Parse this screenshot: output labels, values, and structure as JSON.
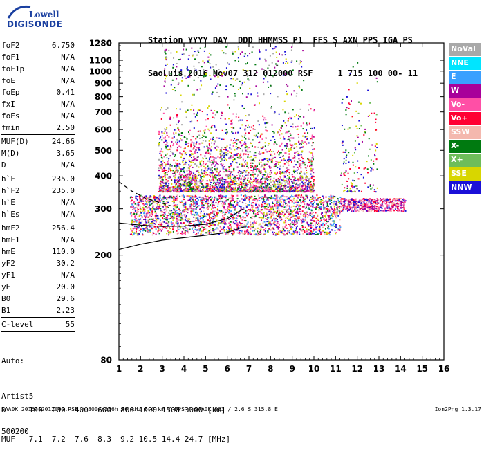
{
  "logo": {
    "line1": "Lowell",
    "line2": "DIGISONDE"
  },
  "header": {
    "line1": "Station YYYY DAY  DDD HHMMSS P1  FFS S AXN PPS IGA PS",
    "line2": "SaoLuis 2016 Nov07 312 012000 RSF     1 715 100 00- 11"
  },
  "params_groups": [
    [
      {
        "label": "foF2",
        "value": "6.750"
      },
      {
        "label": "foF1",
        "value": "N/A"
      },
      {
        "label": "foF1p",
        "value": "N/A"
      },
      {
        "label": "foE",
        "value": "N/A"
      },
      {
        "label": "foEp",
        "value": "0.41"
      },
      {
        "label": "fxI",
        "value": "N/A"
      },
      {
        "label": "foEs",
        "value": "N/A"
      },
      {
        "label": "fmin",
        "value": "2.50"
      }
    ],
    [
      {
        "label": "MUF(D)",
        "value": "24.66"
      },
      {
        "label": "M(D)",
        "value": "3.65"
      },
      {
        "label": "D",
        "value": "N/A"
      }
    ],
    [
      {
        "label": "h`F",
        "value": "235.0"
      },
      {
        "label": "h`F2",
        "value": "235.0"
      },
      {
        "label": "h`E",
        "value": "N/A"
      },
      {
        "label": "h`Es",
        "value": "N/A"
      }
    ],
    [
      {
        "label": "hmF2",
        "value": "256.4"
      },
      {
        "label": "hmF1",
        "value": "N/A"
      },
      {
        "label": "hmE",
        "value": "110.0"
      },
      {
        "label": "yF2",
        "value": "30.2"
      },
      {
        "label": "yF1",
        "value": "N/A"
      },
      {
        "label": "yE",
        "value": "20.0"
      },
      {
        "label": "B0",
        "value": "29.6"
      },
      {
        "label": "B1",
        "value": "2.23"
      }
    ],
    [
      {
        "label": "C-level",
        "value": "55"
      }
    ]
  ],
  "auto": {
    "line1": "Auto:",
    "line2": "Artist5",
    "line3": "500200"
  },
  "legend": [
    {
      "label": "NoVal",
      "color": "#a9a9a9"
    },
    {
      "label": "NNE",
      "color": "#00e5ff"
    },
    {
      "label": "E",
      "color": "#3aa0ff"
    },
    {
      "label": "W",
      "color": "#a8009a"
    },
    {
      "label": "Vo-",
      "color": "#ff4fa6"
    },
    {
      "label": "Vo+",
      "color": "#ff0033"
    },
    {
      "label": "SSW",
      "color": "#f4b8ae"
    },
    {
      "label": "X-",
      "color": "#007a10"
    },
    {
      "label": "X+",
      "color": "#6ebd5a"
    },
    {
      "label": "SSE",
      "color": "#d8d600"
    },
    {
      "label": "NNW",
      "color": "#1a10d8"
    }
  ],
  "muf_table": {
    "row1": "D     100  200  400  600  800 1000 1500 3000 [km]",
    "row2": "MUF   7.1  7.2  7.6  8.3  9.2 10.5 14.4 24.7 [MHz]"
  },
  "footer": "SAA0K_2016312012000.RSF / 300fx256h 50 kHz 5.0 km / DPS-4 SAA0K 903 / 2.6 S 315.8 E",
  "version": "Ion2Png 1.3.17",
  "chart_data": {
    "type": "scatter",
    "title": "",
    "xlabel": "",
    "ylabel": "",
    "xlim": [
      1,
      16
    ],
    "ylim": [
      80,
      1280
    ],
    "y_scale": "log",
    "x_ticks": [
      1,
      2,
      3,
      4,
      5,
      6,
      7,
      8,
      9,
      10,
      11,
      12,
      13,
      14,
      15,
      16
    ],
    "y_ticks": [
      80,
      200,
      300,
      400,
      500,
      600,
      700,
      800,
      900,
      1000,
      1100,
      1280
    ],
    "grid": false,
    "legend_position": "right",
    "traces": [
      {
        "points": [
          [
            1.0,
            210
          ],
          [
            2,
            220
          ],
          [
            3,
            228
          ],
          [
            4,
            233
          ],
          [
            5,
            238
          ],
          [
            6,
            244
          ],
          [
            6.75,
            256
          ]
        ]
      },
      {
        "points": [
          [
            1.0,
            265
          ],
          [
            2,
            260
          ],
          [
            3,
            257
          ],
          [
            4,
            258
          ],
          [
            5,
            262
          ],
          [
            6,
            275
          ],
          [
            6.75,
            300
          ]
        ]
      },
      {
        "points": [
          [
            1.0,
            380
          ],
          [
            1.6,
            350
          ],
          [
            2.2,
            330
          ],
          [
            2.8,
            318
          ],
          [
            3.4,
            308
          ]
        ]
      }
    ],
    "echo_bands": [
      {
        "x": [
          1.5,
          11.2
        ],
        "y": [
          240,
          340
        ],
        "n": 2400,
        "colors": [
          "#a8009a",
          "#ff0033",
          "#ff4fa6",
          "#d8d600",
          "#1a10d8",
          "#007a10",
          "#3aa0ff",
          "#f4b8ae"
        ]
      },
      {
        "x": [
          11.2,
          14.2
        ],
        "y": [
          295,
          330
        ],
        "n": 500,
        "colors": [
          "#a8009a",
          "#ff0033",
          "#ff4fa6",
          "#f4b8ae",
          "#1a10d8"
        ]
      },
      {
        "x": [
          2.8,
          10.0
        ],
        "y": [
          350,
          800
        ],
        "n": 2600,
        "colors": [
          "#a8009a",
          "#d8d600",
          "#1a10d8",
          "#ff4fa6",
          "#ff0033",
          "#007a10",
          "#a9a9a9"
        ]
      },
      {
        "x": [
          3.0,
          9.5
        ],
        "y": [
          800,
          1250
        ],
        "n": 260,
        "colors": [
          "#a8009a",
          "#d8d600",
          "#1a10d8",
          "#a9a9a9",
          "#007a10"
        ]
      },
      {
        "x": [
          11.2,
          12.9
        ],
        "y": [
          350,
          1250
        ],
        "n": 160,
        "colors": [
          "#007a10",
          "#a8009a",
          "#ff0033",
          "#d8d600",
          "#1a10d8",
          "#6ebd5a"
        ]
      }
    ]
  }
}
